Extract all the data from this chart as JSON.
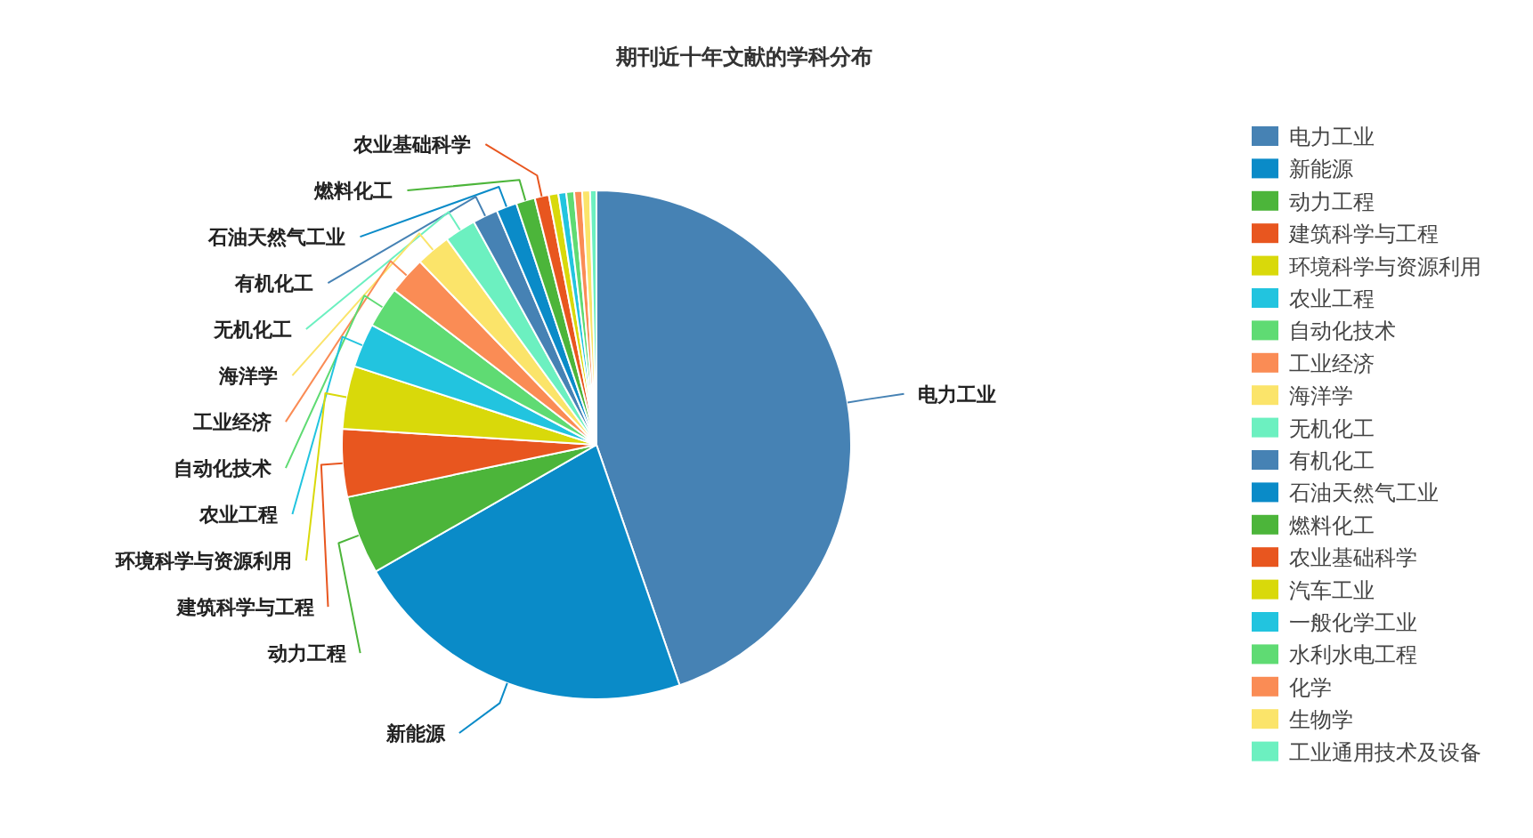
{
  "chart_data": {
    "type": "pie",
    "title": "期刊近十年文献的学科分布",
    "categories": [
      "电力工业",
      "新能源",
      "动力工程",
      "建筑科学与工程",
      "环境科学与资源利用",
      "农业工程",
      "自动化技术",
      "工业经济",
      "海洋学",
      "无机化工",
      "有机化工",
      "石油天然气工业",
      "燃料化工",
      "农业基础科学",
      "汽车工业",
      "一般化学工业",
      "水利水电工程",
      "化学",
      "生物学",
      "工业通用技术及设备"
    ],
    "values": [
      44.7,
      22,
      5,
      4.3,
      4,
      2.8,
      2.6,
      2.4,
      2.2,
      2,
      1.6,
      1.3,
      1.2,
      0.9,
      0.6,
      0.5,
      0.5,
      0.5,
      0.5,
      0.4
    ],
    "value_labels": [
      "电力工业",
      "新能源",
      "动力工程",
      "建筑科学与工程",
      "环境科学与资源利用",
      "农业工程",
      "自动化技术",
      "工业经济",
      "海洋学",
      "无机化工",
      "有机化工",
      "石油天然气工业",
      "燃料化工",
      "农业基础科学",
      null,
      null,
      null,
      null,
      null,
      null
    ],
    "colors": [
      "#4682b4",
      "#0a8bc8",
      "#4cb53a",
      "#e8561f",
      "#d9d90a",
      "#22c4df",
      "#5fdb73",
      "#fa8c55",
      "#fbe46a",
      "#6cf0c0",
      "#4682b4",
      "#0a8bc8",
      "#4cb53a",
      "#e8561f",
      "#d9d90a",
      "#22c4df",
      "#5fdb73",
      "#fa8c55",
      "#fbe46a",
      "#6cf0c0"
    ],
    "legend": "right"
  }
}
